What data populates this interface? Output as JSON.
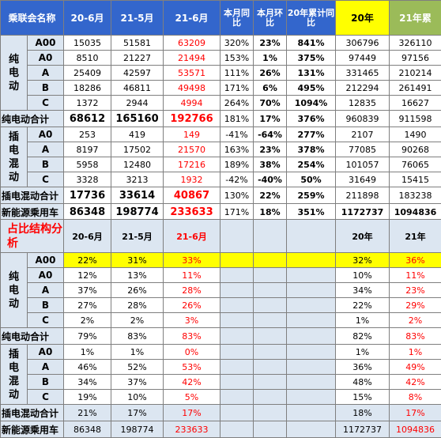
{
  "top": {
    "headers": [
      "乘联会名称",
      "20-6月",
      "21-5月",
      "21-6月",
      "本月同比",
      "本月环比",
      "20年累计同比",
      "20年",
      "21年累"
    ],
    "bev_label": "纯电动",
    "phev_label": "插电混动",
    "rows": [
      {
        "sub": "A00",
        "v": [
          "15035",
          "51581",
          "63209",
          "320%",
          "23%",
          "841%",
          "306796",
          "326110"
        ]
      },
      {
        "sub": "A0",
        "v": [
          "8510",
          "21227",
          "21494",
          "153%",
          "1%",
          "375%",
          "97449",
          "97156"
        ]
      },
      {
        "sub": "A",
        "v": [
          "25409",
          "42597",
          "53571",
          "111%",
          "26%",
          "131%",
          "331465",
          "210214"
        ]
      },
      {
        "sub": "B",
        "v": [
          "18286",
          "46811",
          "49498",
          "171%",
          "6%",
          "495%",
          "212294",
          "261491"
        ]
      },
      {
        "sub": "C",
        "v": [
          "1372",
          "2944",
          "4994",
          "264%",
          "70%",
          "1094%",
          "12835",
          "16627"
        ]
      },
      {
        "sub": "纯电动合计",
        "v": [
          "68612",
          "165160",
          "192766",
          "181%",
          "17%",
          "376%",
          "960839",
          "911598"
        ]
      },
      {
        "sub": "A0",
        "v": [
          "253",
          "419",
          "149",
          "-41%",
          "-64%",
          "277%",
          "2107",
          "1490"
        ]
      },
      {
        "sub": "A",
        "v": [
          "8197",
          "17502",
          "21570",
          "163%",
          "23%",
          "378%",
          "77085",
          "90268"
        ]
      },
      {
        "sub": "B",
        "v": [
          "5958",
          "12480",
          "17216",
          "189%",
          "38%",
          "254%",
          "101057",
          "76065"
        ]
      },
      {
        "sub": "C",
        "v": [
          "3328",
          "3213",
          "1932",
          "-42%",
          "-40%",
          "50%",
          "31649",
          "15415"
        ]
      },
      {
        "sub": "插电混动合计",
        "v": [
          "17736",
          "33614",
          "40867",
          "130%",
          "22%",
          "259%",
          "211898",
          "183238"
        ]
      },
      {
        "sub": "新能源乘用车",
        "v": [
          "86348",
          "198774",
          "233633",
          "171%",
          "18%",
          "351%",
          "1172737",
          "1094836"
        ]
      }
    ]
  },
  "share": {
    "title": "占比结构分析",
    "headers": [
      "20-6月",
      "21-5月",
      "21-6月",
      "20年",
      "21年"
    ],
    "bev_label": "纯电动",
    "phev_label": "插电混动",
    "rows": [
      {
        "sub": "A00",
        "v": [
          "22%",
          "31%",
          "33%",
          "32%",
          "36%"
        ]
      },
      {
        "sub": "A0",
        "v": [
          "12%",
          "13%",
          "11%",
          "10%",
          "11%"
        ]
      },
      {
        "sub": "A",
        "v": [
          "37%",
          "26%",
          "28%",
          "34%",
          "23%"
        ]
      },
      {
        "sub": "B",
        "v": [
          "27%",
          "28%",
          "26%",
          "22%",
          "29%"
        ]
      },
      {
        "sub": "C",
        "v": [
          "2%",
          "2%",
          "3%",
          "1%",
          "2%"
        ]
      },
      {
        "sub": "纯电动合计",
        "v": [
          "79%",
          "83%",
          "83%",
          "82%",
          "83%"
        ]
      },
      {
        "sub": "A0",
        "v": [
          "1%",
          "1%",
          "0%",
          "1%",
          "1%"
        ]
      },
      {
        "sub": "A",
        "v": [
          "46%",
          "52%",
          "53%",
          "36%",
          "49%"
        ]
      },
      {
        "sub": "B",
        "v": [
          "34%",
          "37%",
          "42%",
          "48%",
          "42%"
        ]
      },
      {
        "sub": "C",
        "v": [
          "19%",
          "10%",
          "5%",
          "15%",
          "8%"
        ]
      },
      {
        "sub": "插电混动合计",
        "v": [
          "21%",
          "17%",
          "17%",
          "18%",
          "17%"
        ]
      },
      {
        "sub": "新能源乘用车",
        "v": [
          "86348",
          "198774",
          "233633",
          "1172737",
          "1094836"
        ]
      }
    ]
  },
  "colors": {
    "header_blue": "#3366cc",
    "highlight_yellow": "#ffff00",
    "header_green": "#9bbb59",
    "light_blue": "#dce6f1",
    "red": "#ff0000"
  }
}
